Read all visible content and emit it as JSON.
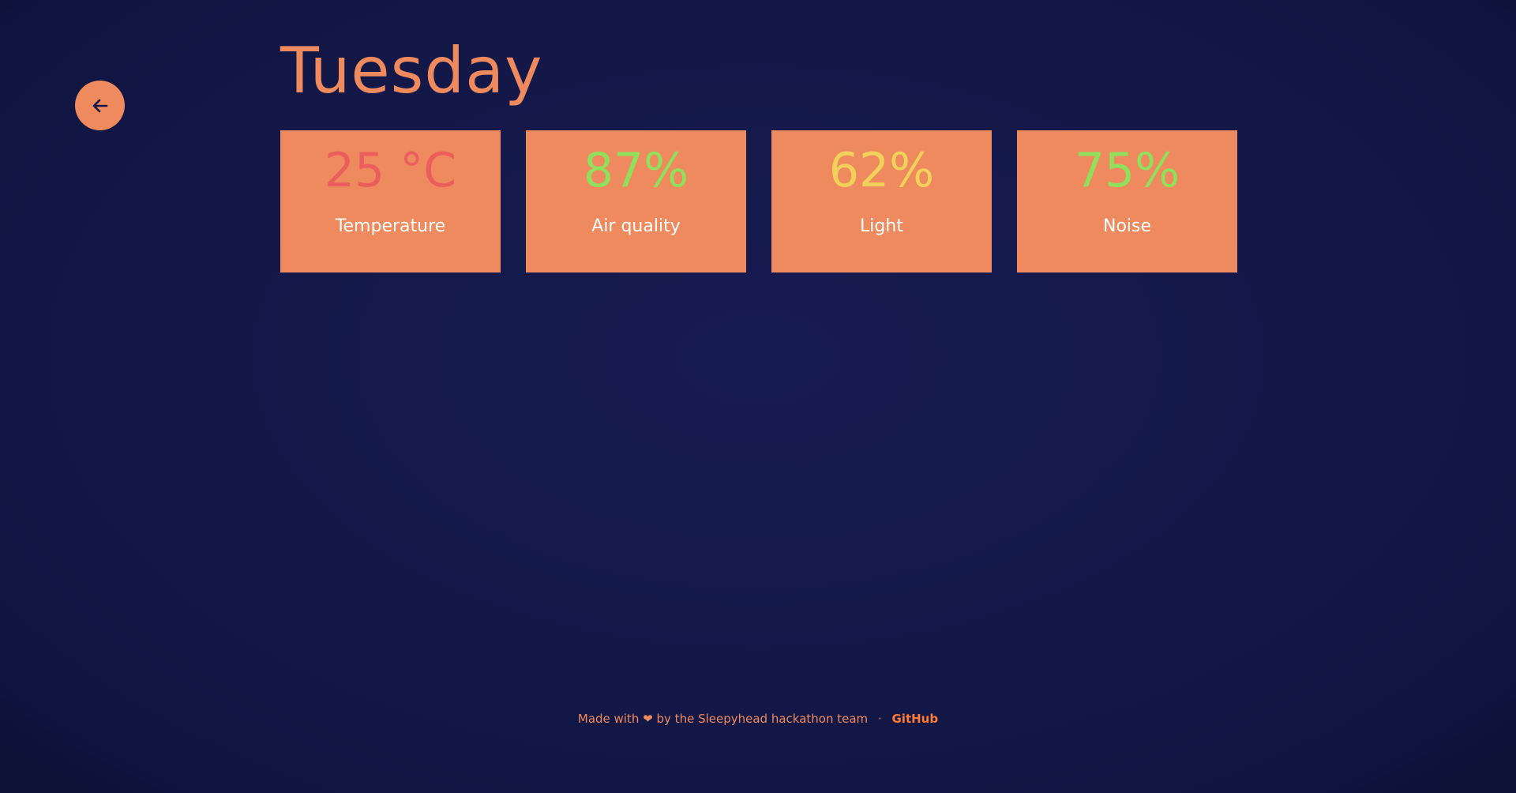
{
  "page": {
    "title": "Tuesday"
  },
  "back_button": {
    "icon": "arrow-left-icon",
    "color": "#ee8a5d"
  },
  "cards": [
    {
      "value": "25 °C",
      "label": "Temperature",
      "value_color": "#ec5e5e"
    },
    {
      "value": "87%",
      "label": "Air quality",
      "value_color": "#8fe05a"
    },
    {
      "value": "62%",
      "label": "Light",
      "value_color": "#f0d25a"
    },
    {
      "value": "75%",
      "label": "Noise",
      "value_color": "#8fe05a"
    }
  ],
  "footer": {
    "text_before": "Made with",
    "heart": "❤",
    "text_after": "by the Sleepyhead hackathon team",
    "separator": "·",
    "link_label": "GitHub"
  },
  "colors": {
    "accent": "#ee8a5d",
    "background": "#141848",
    "link": "#ff7a33"
  }
}
